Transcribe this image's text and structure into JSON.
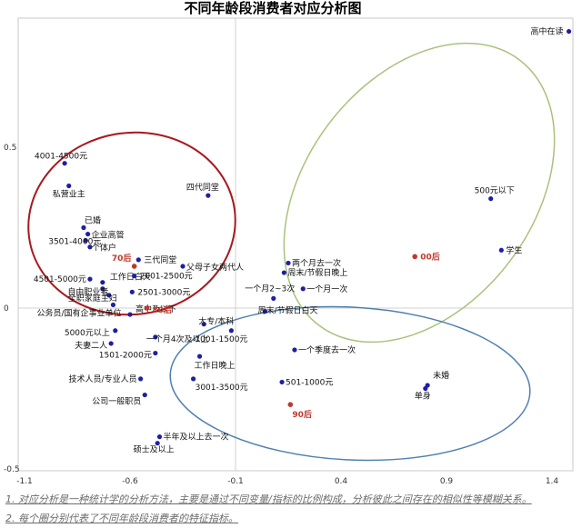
{
  "chart_data": {
    "type": "scatter",
    "title": "不同年龄段消费者对应分析图",
    "xlim": [
      -1.1,
      1.5
    ],
    "ylim": [
      -0.5,
      0.95
    ],
    "x_ticks": [
      "-1.1",
      "-0.6",
      "-0.1",
      "0.4",
      "0.9",
      "1.4"
    ],
    "x_tick_values": [
      -1.1,
      -0.6,
      -0.1,
      0.4,
      0.9,
      1.4
    ],
    "y_ticks": [
      "0.5",
      "0",
      "-0.5"
    ],
    "y_tick_values": [
      0.5,
      0,
      -0.5
    ],
    "grid": false,
    "colors": {
      "point": "#1f1fa0",
      "age_point": "#c0392b",
      "age_label": "#c0392b",
      "circle_red": "#a8191e",
      "circle_green": "#a9c27b",
      "circle_blue": "#4f7fb0"
    },
    "points": [
      {
        "label": "高中在读",
        "x": 1.48,
        "y": 0.86
      },
      {
        "label": "4001-4500元",
        "x": -0.91,
        "y": 0.45
      },
      {
        "label": "私营业主",
        "x": -0.89,
        "y": 0.38
      },
      {
        "label": "四代同堂",
        "x": -0.23,
        "y": 0.35
      },
      {
        "label": "500元以下",
        "x": 1.11,
        "y": 0.34
      },
      {
        "label": "已婚",
        "x": -0.82,
        "y": 0.25
      },
      {
        "label": "企业高管",
        "x": -0.8,
        "y": 0.23
      },
      {
        "label": "3501-4000元",
        "x": -0.81,
        "y": 0.21
      },
      {
        "label": "个体户",
        "x": -0.79,
        "y": 0.19
      },
      {
        "label": "学生",
        "x": 1.16,
        "y": 0.18
      },
      {
        "label": "三代同堂",
        "x": -0.56,
        "y": 0.15
      },
      {
        "label": "父母子女两代人",
        "x": -0.35,
        "y": 0.13
      },
      {
        "label": "两个月去一次",
        "x": 0.15,
        "y": 0.14
      },
      {
        "label": "周末/节假日晚上",
        "x": 0.13,
        "y": 0.11
      },
      {
        "label": "4501-5000元",
        "x": -0.79,
        "y": 0.09
      },
      {
        "label": "工作日白天",
        "x": -0.73,
        "y": 0.08
      },
      {
        "label": "2001-2500元",
        "x": -0.58,
        "y": 0.1
      },
      {
        "label": "自由职业者",
        "x": -0.73,
        "y": 0.06
      },
      {
        "label": "2501-3000元",
        "x": -0.59,
        "y": 0.05
      },
      {
        "label": "一个月一次",
        "x": 0.22,
        "y": 0.06
      },
      {
        "label": "全职家庭主妇",
        "x": -0.7,
        "y": 0.04
      },
      {
        "label": "一个月2~3次",
        "x": 0.08,
        "y": 0.03
      },
      {
        "label": "公务员/国有企事业单位",
        "x": -0.68,
        "y": 0.01
      },
      {
        "label": "高中及以下",
        "x": -0.6,
        "y": -0.02
      },
      {
        "label": "大专/本科",
        "x": -0.25,
        "y": -0.05
      },
      {
        "label": "周末/节假日白天",
        "x": 0.04,
        "y": -0.01
      },
      {
        "label": "5000元以上",
        "x": -0.67,
        "y": -0.07
      },
      {
        "label": "一个月4次及以上",
        "x": -0.48,
        "y": -0.09
      },
      {
        "label": "1001-1500元",
        "x": -0.12,
        "y": -0.07
      },
      {
        "label": "夫妻二人",
        "x": -0.69,
        "y": -0.11
      },
      {
        "label": "1501-2000元",
        "x": -0.48,
        "y": -0.14
      },
      {
        "label": "工作日晚上",
        "x": -0.27,
        "y": -0.15
      },
      {
        "label": "一个季度去一次",
        "x": 0.18,
        "y": -0.13
      },
      {
        "label": "技术人员/专业人员",
        "x": -0.55,
        "y": -0.22
      },
      {
        "label": "3001-3500元",
        "x": -0.3,
        "y": -0.22
      },
      {
        "label": "501-1000元",
        "x": 0.12,
        "y": -0.23
      },
      {
        "label": "未婚",
        "x": 0.81,
        "y": -0.24
      },
      {
        "label": "单身",
        "x": 0.8,
        "y": -0.25
      },
      {
        "label": "公司一般职员",
        "x": -0.53,
        "y": -0.27
      },
      {
        "label": "半年及以上去一次",
        "x": -0.46,
        "y": -0.4
      },
      {
        "label": "硕士及以上",
        "x": -0.47,
        "y": -0.42
      }
    ],
    "age_points": [
      {
        "label": "00后",
        "x": 0.75,
        "y": 0.16
      },
      {
        "label": "70后",
        "x": -0.58,
        "y": 0.13
      },
      {
        "label": "80后",
        "x": -0.52,
        "y": 0.0
      },
      {
        "label": "90后",
        "x": 0.16,
        "y": -0.3
      }
    ],
    "annotations": [
      "1. 对应分析是一种统计学的分析方法，主要是通过不同变量/指标的比例构成，分析彼此之间存在的相似性等模糊关系。",
      "2. 每个圈分别代表了不同年龄段消费者的特征指标。"
    ]
  }
}
